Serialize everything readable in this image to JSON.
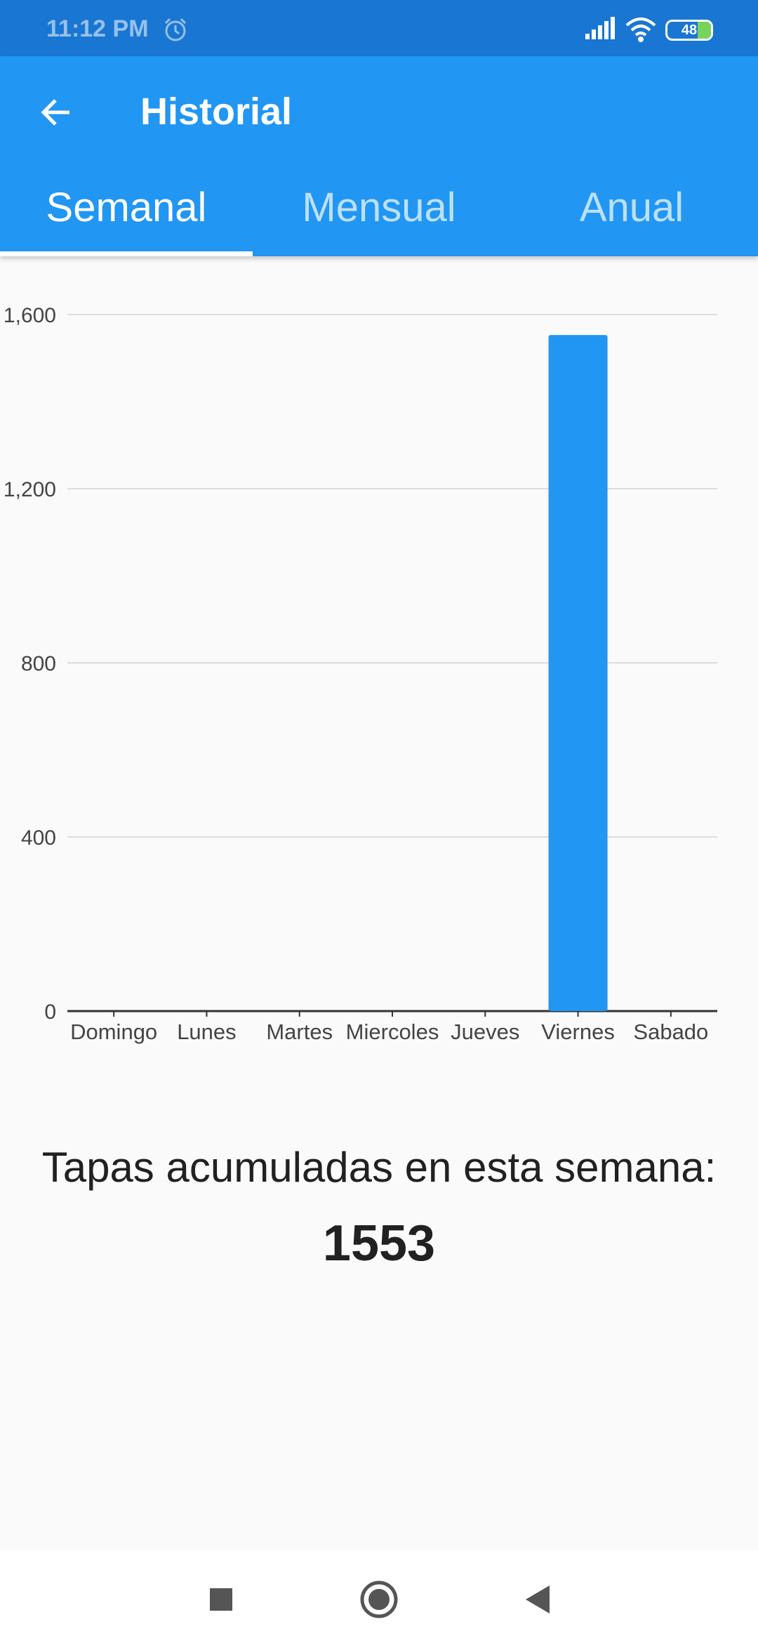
{
  "status_bar": {
    "time": "11:12 PM",
    "battery": "48"
  },
  "app_bar": {
    "title": "Historial",
    "back_icon": "arrow-left-icon"
  },
  "tabs": [
    {
      "label": "Semanal",
      "active": true
    },
    {
      "label": "Mensual",
      "active": false
    },
    {
      "label": "Anual",
      "active": false
    }
  ],
  "chart_data": {
    "type": "bar",
    "categories": [
      "Domingo",
      "Lunes",
      "Martes",
      "Miercoles",
      "Jueves",
      "Viernes",
      "Sabado"
    ],
    "values": [
      0,
      0,
      0,
      0,
      0,
      1553,
      0
    ],
    "ylim": [
      0,
      1600
    ],
    "yticks": [
      "0",
      "400",
      "800",
      "1,200",
      "1,600"
    ],
    "grid": true,
    "color": "#2196f3"
  },
  "summary": {
    "label": "Tapas acumuladas en esta semana:",
    "value": "1553"
  },
  "colors": {
    "primary": "#2196f3",
    "status_bar": "#1976d2",
    "background": "#fafafa"
  }
}
